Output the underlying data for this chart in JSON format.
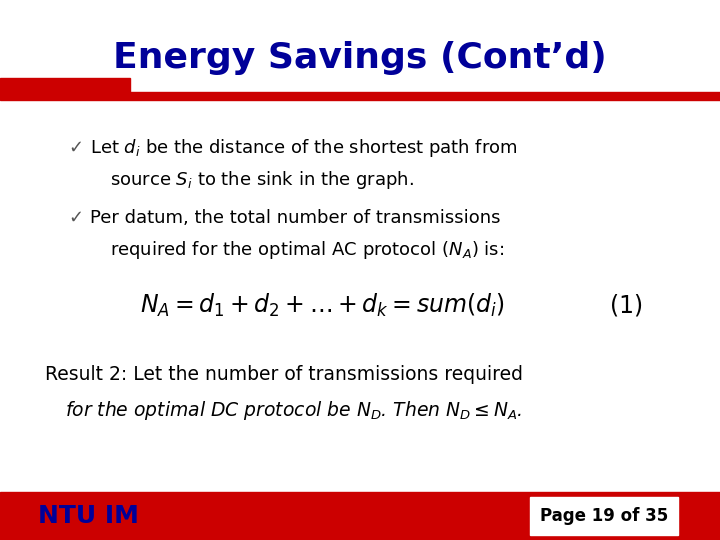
{
  "title": "Energy Savings (Cont’d)",
  "title_color": "#000099",
  "bg_color": "#ffffff",
  "red_color": "#cc0000",
  "dark_blue": "#000099",
  "black": "#000000",
  "footer_left": "NTU IM",
  "footer_right": "Page 19 of 35"
}
